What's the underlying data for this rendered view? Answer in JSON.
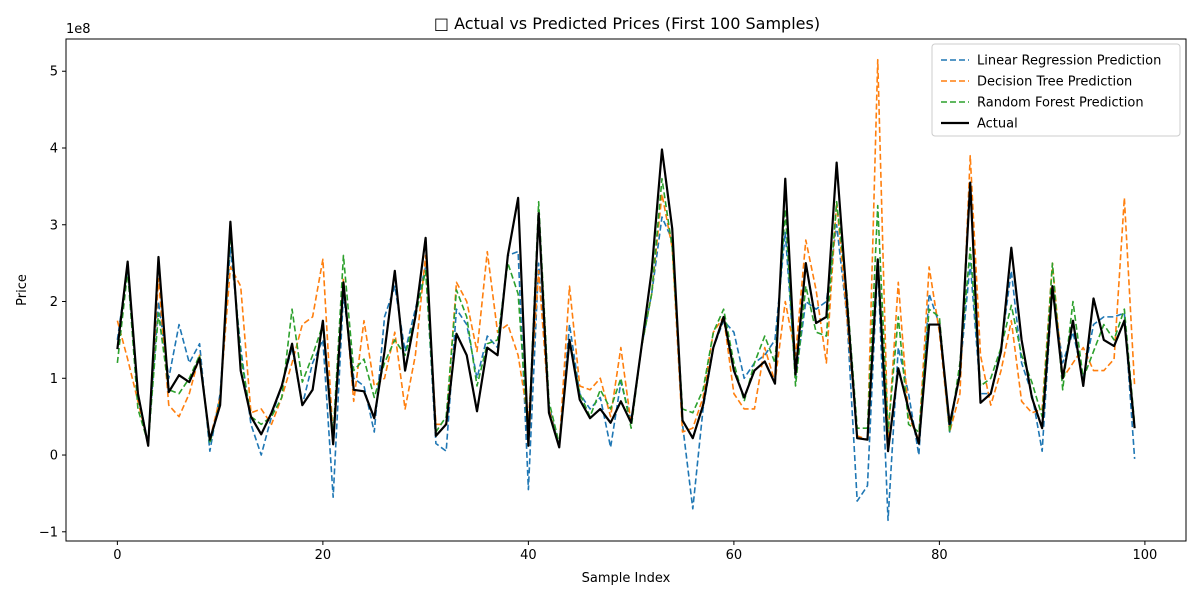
{
  "chart_data": {
    "type": "line",
    "title": "□ Actual vs Predicted Prices (First 100 Samples)",
    "xlabel": "Sample Index",
    "ylabel": "Price",
    "y_multiplier_label": "1e8",
    "xlim": [
      -5,
      104
    ],
    "ylim": [
      -1.12,
      5.42
    ],
    "xticks": [
      0,
      20,
      40,
      60,
      80,
      100
    ],
    "xtick_labels": [
      "0",
      "20",
      "40",
      "60",
      "80",
      "100"
    ],
    "yticks": [
      -1,
      0,
      1,
      2,
      3,
      4,
      5
    ],
    "ytick_labels": [
      "−1",
      "0",
      "1",
      "2",
      "3",
      "4",
      "5"
    ],
    "legend_position": "top-right",
    "grid": false,
    "series": [
      {
        "name": "Linear Regression Prediction",
        "color": "#1f77b4",
        "dash": "dashed",
        "values": [
          1.5,
          2.45,
          0.8,
          0.15,
          2.0,
          1.0,
          1.7,
          1.2,
          1.45,
          0.05,
          0.8,
          2.7,
          1.4,
          0.4,
          0.0,
          0.5,
          0.9,
          1.4,
          0.65,
          1.2,
          1.5,
          -0.55,
          2.1,
          1.0,
          0.9,
          0.3,
          1.8,
          2.2,
          1.35,
          1.9,
          2.45,
          0.15,
          0.05,
          1.9,
          1.7,
          1.0,
          1.55,
          1.4,
          2.6,
          2.65,
          -0.45,
          2.5,
          0.65,
          0.1,
          1.7,
          0.8,
          0.6,
          0.75,
          0.1,
          0.95,
          0.45,
          1.4,
          2.1,
          3.1,
          2.8,
          0.4,
          -0.7,
          0.6,
          1.4,
          1.75,
          1.6,
          1.0,
          1.2,
          1.3,
          1.5,
          2.9,
          1.0,
          2.0,
          1.9,
          2.0,
          3.0,
          1.8,
          -0.6,
          -0.4,
          2.5,
          -0.85,
          1.4,
          0.8,
          0.0,
          2.1,
          1.7,
          0.3,
          1.1,
          2.5,
          0.8,
          0.8,
          1.4,
          2.4,
          1.2,
          0.8,
          0.05,
          2.2,
          1.2,
          1.6,
          1.0,
          1.7,
          1.8,
          1.8,
          1.85,
          -0.05
        ]
      },
      {
        "name": "Decision Tree Prediction",
        "color": "#ff7f0e",
        "dash": "dashed",
        "values": [
          1.75,
          1.25,
          0.7,
          0.15,
          2.3,
          0.65,
          0.5,
          0.8,
          1.3,
          0.2,
          0.75,
          2.45,
          2.2,
          0.55,
          0.6,
          0.4,
          0.75,
          1.2,
          1.7,
          1.8,
          2.55,
          0.2,
          2.3,
          0.7,
          1.75,
          0.9,
          1.0,
          1.6,
          0.6,
          1.3,
          2.6,
          0.4,
          0.4,
          2.25,
          2.0,
          1.35,
          2.65,
          1.6,
          1.7,
          1.3,
          0.45,
          2.4,
          0.6,
          0.1,
          2.2,
          0.9,
          0.85,
          1.0,
          0.5,
          1.4,
          0.4,
          1.4,
          2.1,
          3.4,
          2.7,
          0.3,
          0.35,
          0.75,
          1.6,
          1.8,
          0.8,
          0.6,
          0.6,
          1.4,
          0.95,
          2.0,
          1.3,
          2.8,
          2.15,
          1.2,
          3.3,
          1.8,
          0.25,
          0.2,
          5.15,
          0.2,
          2.25,
          0.5,
          0.2,
          2.45,
          1.6,
          0.3,
          0.8,
          3.9,
          1.3,
          0.65,
          1.1,
          1.75,
          0.7,
          0.55,
          0.6,
          2.5,
          1.0,
          1.2,
          1.4,
          1.1,
          1.1,
          1.25,
          3.35,
          0.9
        ]
      },
      {
        "name": "Random Forest Prediction",
        "color": "#2ca02c",
        "dash": "dashed",
        "values": [
          1.2,
          2.4,
          0.6,
          0.15,
          1.85,
          0.85,
          0.8,
          1.0,
          1.3,
          0.15,
          0.7,
          2.9,
          1.3,
          0.5,
          0.4,
          0.5,
          0.75,
          1.9,
          0.95,
          1.3,
          1.7,
          0.25,
          2.6,
          1.1,
          1.25,
          0.75,
          1.2,
          1.5,
          1.3,
          1.8,
          2.4,
          0.3,
          0.5,
          2.15,
          1.8,
          0.9,
          1.45,
          1.5,
          2.5,
          2.1,
          0.2,
          3.3,
          0.7,
          0.15,
          1.5,
          0.8,
          0.5,
          0.85,
          0.6,
          1.0,
          0.35,
          1.4,
          2.1,
          3.6,
          2.7,
          0.6,
          0.55,
          0.85,
          1.6,
          1.9,
          1.2,
          0.7,
          1.2,
          1.55,
          1.2,
          3.2,
          0.9,
          2.2,
          1.6,
          1.55,
          3.3,
          2.1,
          0.35,
          0.35,
          3.25,
          0.3,
          1.8,
          0.4,
          0.3,
          1.9,
          1.8,
          0.3,
          1.2,
          2.7,
          0.9,
          1.0,
          1.4,
          1.95,
          1.3,
          0.95,
          0.5,
          2.5,
          0.85,
          2.0,
          1.0,
          1.35,
          1.7,
          1.5,
          1.9,
          0.4
        ]
      },
      {
        "name": "Actual",
        "color": "#000000",
        "dash": "solid",
        "values": [
          1.38,
          2.52,
          0.8,
          0.12,
          2.58,
          0.82,
          1.04,
          0.95,
          1.26,
          0.2,
          0.65,
          3.04,
          1.1,
          0.5,
          0.27,
          0.55,
          0.9,
          1.45,
          0.65,
          0.85,
          1.75,
          0.14,
          2.25,
          0.85,
          0.83,
          0.48,
          1.35,
          2.4,
          1.1,
          1.8,
          2.83,
          0.25,
          0.4,
          1.58,
          1.3,
          0.57,
          1.4,
          1.3,
          2.6,
          3.35,
          0.12,
          3.15,
          0.55,
          0.1,
          1.5,
          0.72,
          0.48,
          0.6,
          0.42,
          0.7,
          0.42,
          1.4,
          2.4,
          3.98,
          2.95,
          0.45,
          0.22,
          0.65,
          1.4,
          1.8,
          1.1,
          0.75,
          1.1,
          1.22,
          0.93,
          3.6,
          1.05,
          2.5,
          1.72,
          1.8,
          3.81,
          2.0,
          0.22,
          0.2,
          2.55,
          0.05,
          1.13,
          0.6,
          0.15,
          1.7,
          1.7,
          0.4,
          1.05,
          3.55,
          0.68,
          0.8,
          1.35,
          2.7,
          1.5,
          0.75,
          0.35,
          2.2,
          1.0,
          1.75,
          0.9,
          2.04,
          1.5,
          1.42,
          1.75,
          0.35
        ]
      }
    ]
  }
}
